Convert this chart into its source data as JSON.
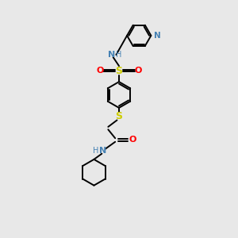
{
  "background_color": "#e8e8e8",
  "atom_colors": {
    "N": "#4682b4",
    "O": "#ff0000",
    "S": "#cccc00",
    "H_label": "#4682b4"
  },
  "figsize": [
    3.0,
    3.0
  ],
  "dpi": 100,
  "line_width": 1.4,
  "font_size": 7.5
}
